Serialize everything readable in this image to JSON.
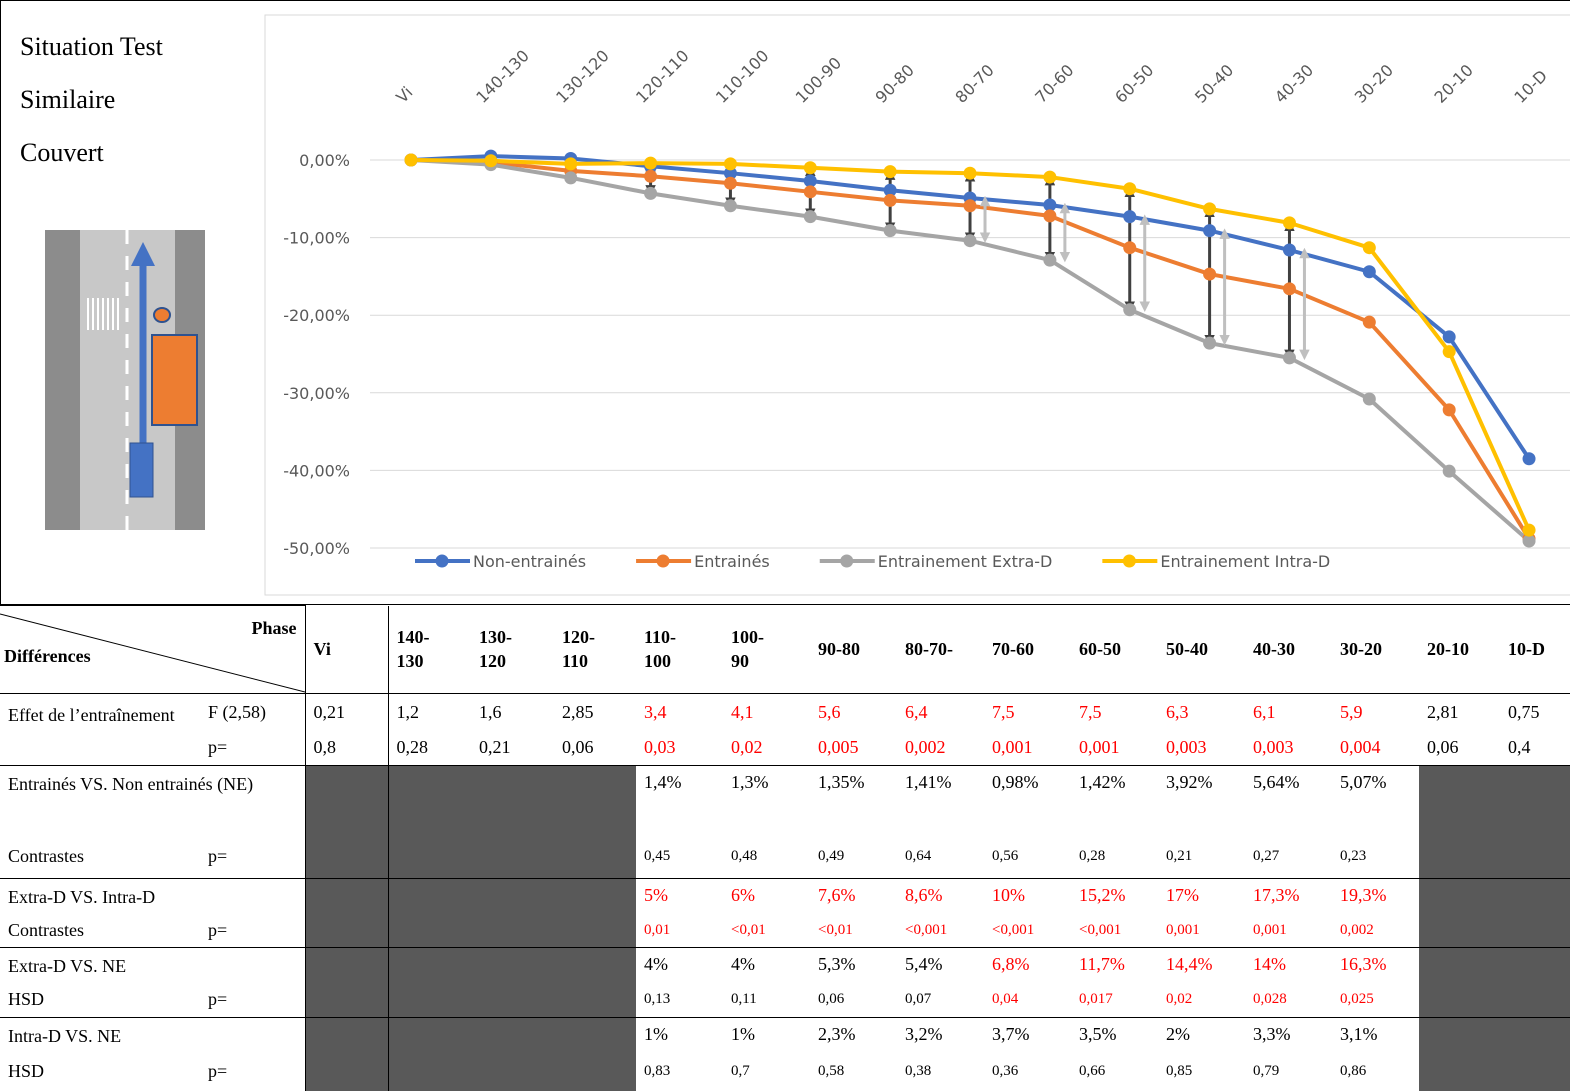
{
  "panel": {
    "lines": [
      "Situation Test",
      "Similaire",
      "Couvert"
    ]
  },
  "chart_data": {
    "type": "line",
    "categories": [
      "Vi",
      "140-130",
      "130-120",
      "120-110",
      "110-100",
      "100-90",
      "90-80",
      "80-70",
      "70-60",
      "60-50",
      "50-40",
      "40-30",
      "30-20",
      "20-10",
      "10-D"
    ],
    "series": [
      {
        "name": "Non-entrainés",
        "color": "#4472c4",
        "values": [
          0,
          0.5,
          0.2,
          -0.8,
          -1.7,
          -2.7,
          -3.9,
          -4.9,
          -5.8,
          -7.3,
          -9.1,
          -11.6,
          -14.4,
          -22.8,
          -38.5
        ]
      },
      {
        "name": "Entrainés",
        "color": "#ed7d31",
        "values": [
          0,
          -0.3,
          -1.4,
          -2.1,
          -3.0,
          -4.1,
          -5.2,
          -5.9,
          -7.2,
          -11.3,
          -14.7,
          -16.6,
          -20.9,
          -32.2,
          -48.8
        ]
      },
      {
        "name": "Entrainement Extra-D",
        "color": "#a5a5a5",
        "values": [
          0,
          -0.6,
          -2.3,
          -4.3,
          -5.9,
          -7.3,
          -9.1,
          -10.4,
          -12.9,
          -19.3,
          -23.6,
          -25.5,
          -30.8,
          -40.1,
          -49.1
        ]
      },
      {
        "name": "Entrainement Intra-D",
        "color": "#ffc000",
        "values": [
          0,
          -0.1,
          -0.5,
          -0.4,
          -0.5,
          -1.0,
          -1.5,
          -1.7,
          -2.2,
          -3.7,
          -6.3,
          -8.1,
          -11.3,
          -24.7,
          -47.7
        ]
      }
    ],
    "ylim": [
      -50,
      0
    ],
    "yticks": [
      {
        "value": 0,
        "label": "0,00%"
      },
      {
        "value": -10,
        "label": "-10,00%"
      },
      {
        "value": -20,
        "label": "-20,00%"
      },
      {
        "value": -30,
        "label": "-30,00%"
      },
      {
        "value": -40,
        "label": "-40,00%"
      },
      {
        "value": -50,
        "label": "-50,00%"
      }
    ],
    "grid": true,
    "legend": "bottom"
  },
  "table": {
    "highlight_color": "#ff0000",
    "header": {
      "corner_top": "Phase",
      "corner_bottom": "Différences",
      "columns": [
        "Vi",
        "140-\n130",
        "130-\n120",
        "120-\n110",
        "110-\n100",
        "100-\n90",
        "90-80",
        "80-70-",
        "70-60",
        "60-50",
        "50-40",
        "40-30",
        "30-20",
        "20-10",
        "10-D"
      ]
    },
    "effect": {
      "label": "Effet de l’entraînement",
      "rows": [
        {
          "stat": "F (2,58)",
          "cells": [
            "0,21",
            "1,2",
            "1,6",
            "2,85",
            "3,4",
            "4,1",
            "5,6",
            "6,4",
            "7,5",
            "7,5",
            "6,3",
            "6,1",
            "5,9",
            "2,81",
            "0,75"
          ],
          "red": [
            4,
            5,
            6,
            7,
            8,
            9,
            10,
            11,
            12
          ]
        },
        {
          "stat": "p=",
          "cells": [
            "0,8",
            "0,28",
            "0,21",
            "0,06",
            "0,03",
            "0,02",
            "0,005",
            "0,002",
            "0,001",
            "0,001",
            "0,003",
            "0,003",
            "0,004",
            "0,06",
            "0,4"
          ],
          "red": [
            4,
            5,
            6,
            7,
            8,
            9,
            10,
            11,
            12
          ]
        }
      ]
    },
    "comparisons": [
      {
        "title": "Entrainés VS. Non entrainés (NE)",
        "test": "Contrastes",
        "p_label": "p=",
        "values": [
          "1,4%",
          "1,3%",
          "1,35%",
          "1,41%",
          "0,98%",
          "1,42%",
          "3,92%",
          "5,64%",
          "5,07%"
        ],
        "p_values": [
          "0,45",
          "0,48",
          "0,49",
          "0,64",
          "0,56",
          "0,28",
          "0,21",
          "0,27",
          "0,23"
        ],
        "red_values": [],
        "red_p": []
      },
      {
        "title": "Extra-D VS. Intra-D",
        "test": "Contrastes",
        "p_label": "p=",
        "values": [
          "5%",
          "6%",
          "7,6%",
          "8,6%",
          "10%",
          "15,2%",
          "17%",
          "17,3%",
          "19,3%"
        ],
        "p_values": [
          "0,01",
          "<0,01",
          "<0,01",
          "<0,001",
          "<0,001",
          "<0,001",
          "0,001",
          "0,001",
          "0,002"
        ],
        "red_values": [
          0,
          1,
          2,
          3,
          4,
          5,
          6,
          7,
          8
        ],
        "red_p": [
          0,
          1,
          2,
          3,
          4,
          5,
          6,
          7,
          8
        ]
      },
      {
        "title": "Extra-D VS. NE",
        "test": "HSD",
        "p_label": "p=",
        "values": [
          "4%",
          "4%",
          "5,3%",
          "5,4%",
          "6,8%",
          "11,7%",
          "14,4%",
          "14%",
          "16,3%"
        ],
        "p_values": [
          "0,13",
          "0,11",
          "0,06",
          "0,07",
          "0,04",
          "0,017",
          "0,02",
          "0,028",
          "0,025"
        ],
        "red_values": [
          4,
          5,
          6,
          7,
          8
        ],
        "red_p": [
          4,
          5,
          6,
          7,
          8
        ]
      },
      {
        "title": "Intra-D VS. NE",
        "test": "HSD",
        "p_label": "p=",
        "values": [
          "1%",
          "1%",
          "2,3%",
          "3,2%",
          "3,7%",
          "3,5%",
          "2%",
          "3,3%",
          "3,1%"
        ],
        "p_values": [
          "0,83",
          "0,7",
          "0,58",
          "0,38",
          "0,36",
          "0,66",
          "0,85",
          "0,79",
          "0,86"
        ],
        "red_values": [],
        "red_p": []
      }
    ]
  }
}
